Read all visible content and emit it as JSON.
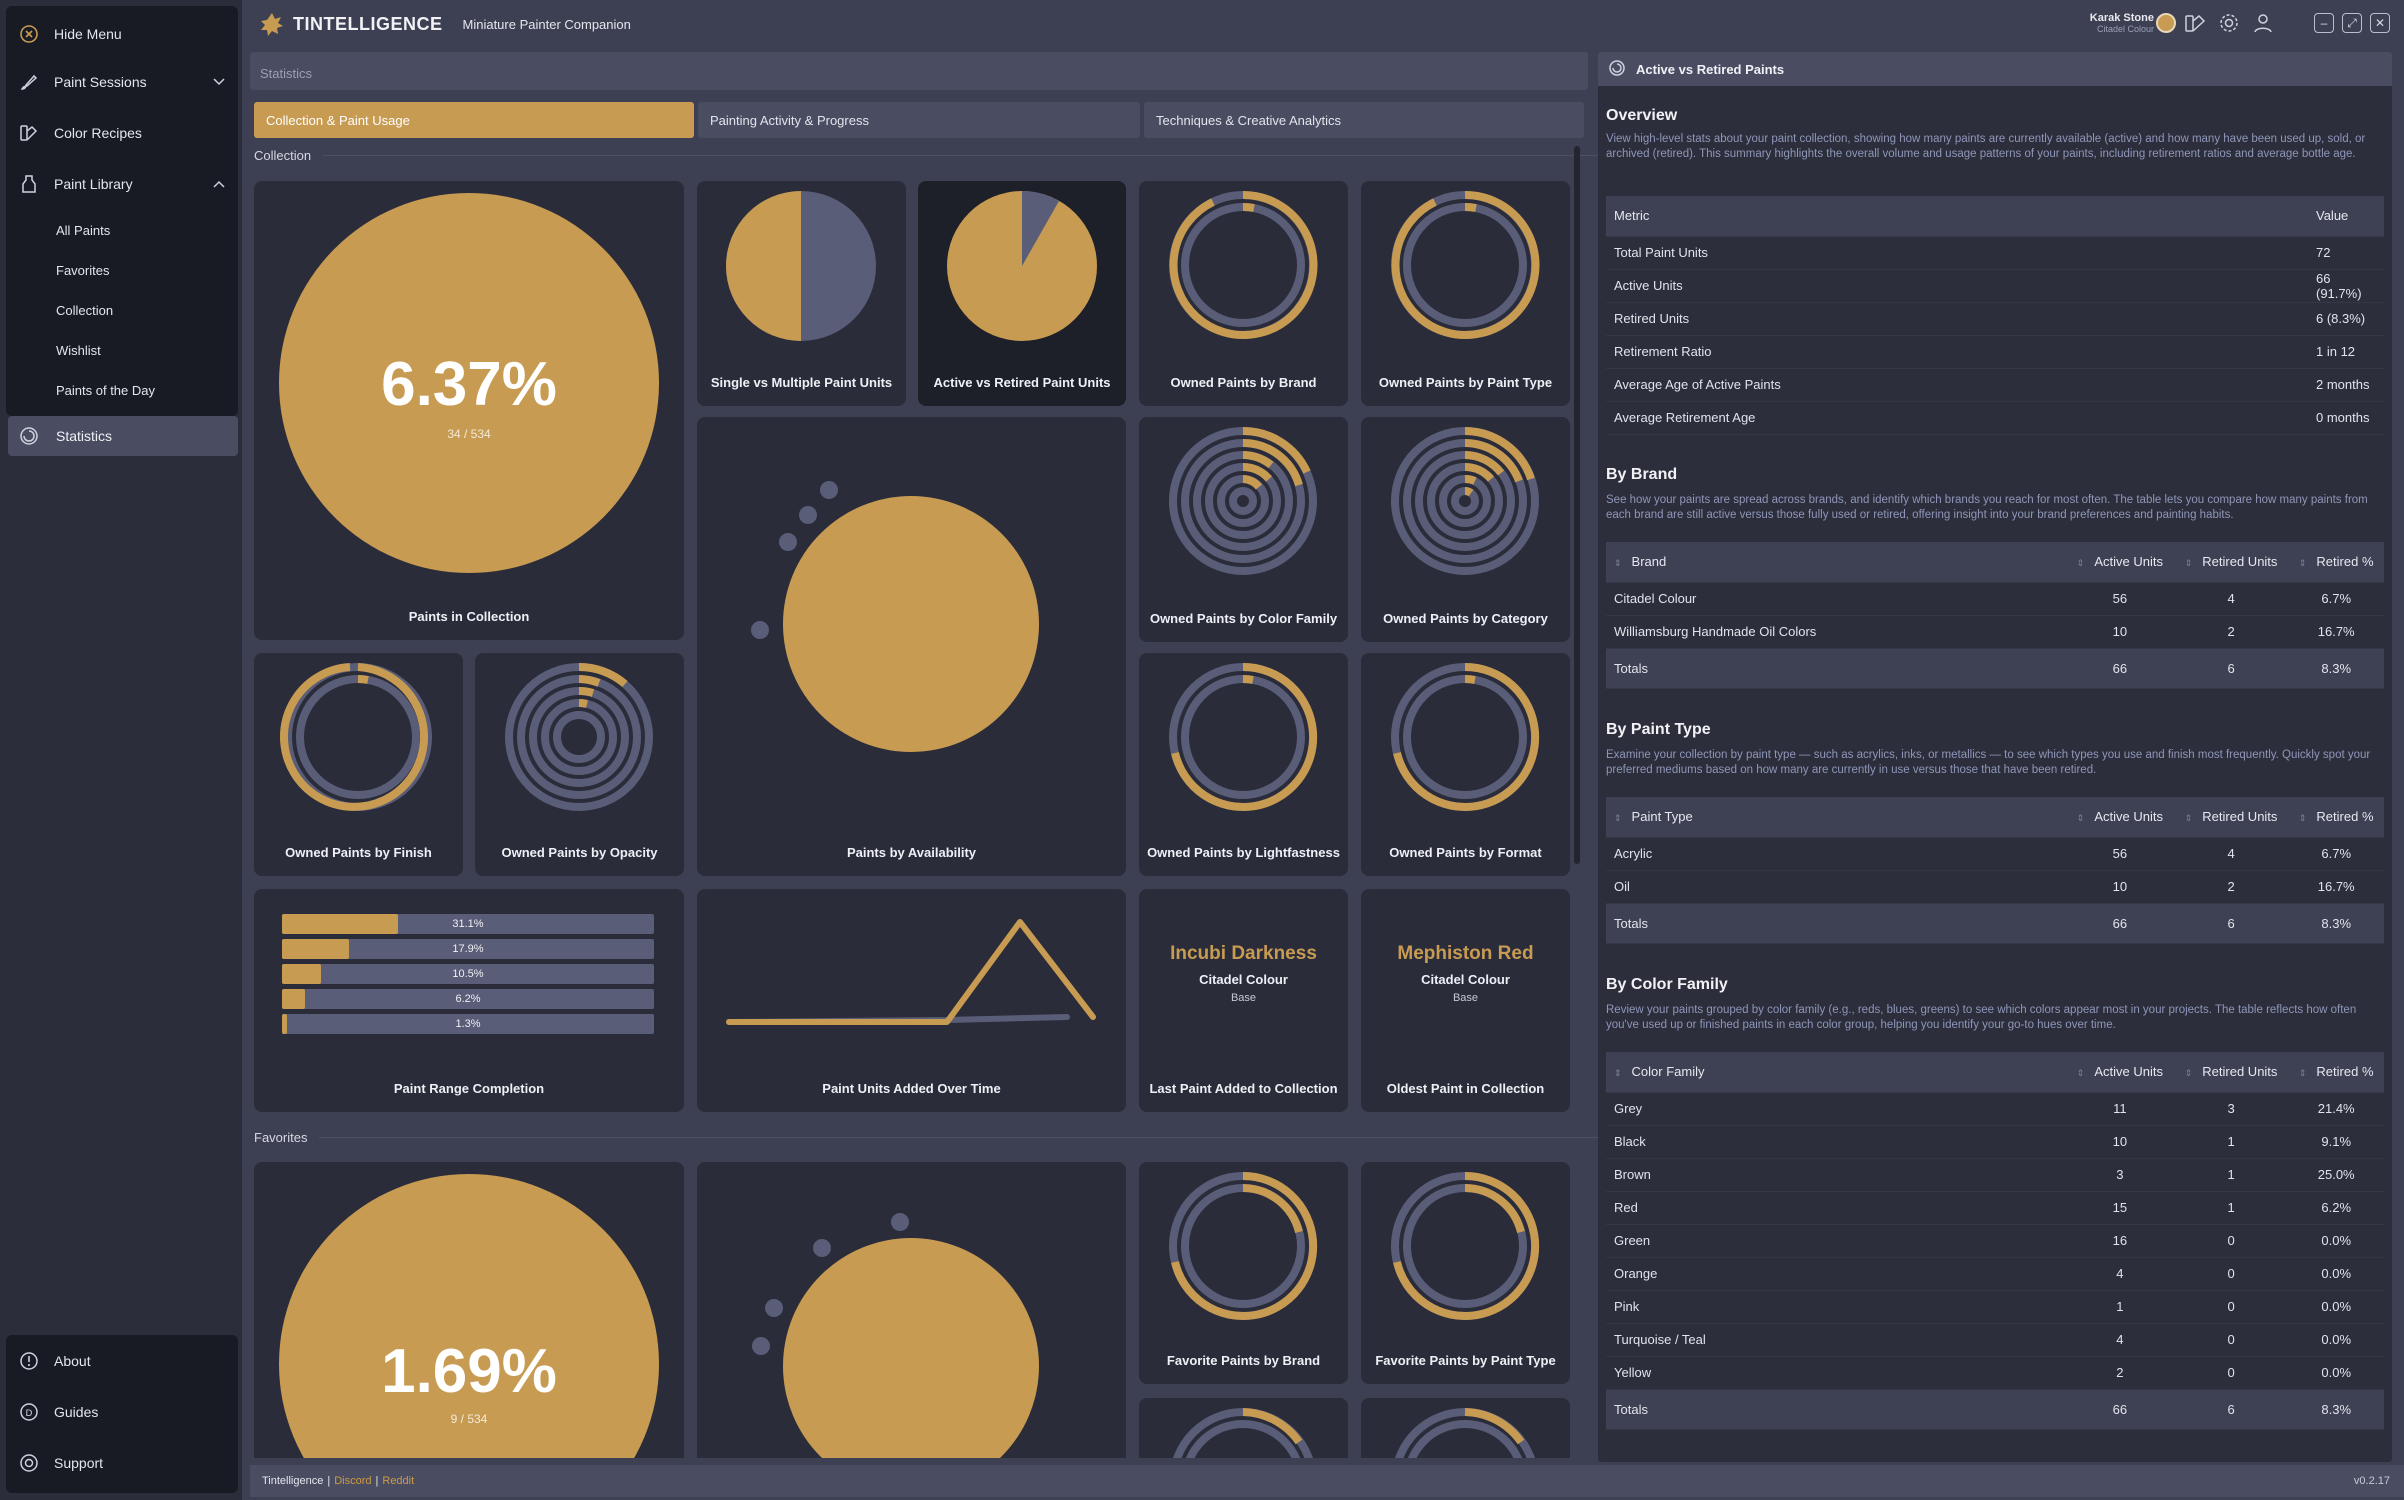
{
  "colors": {
    "accent": "#c89b52",
    "ring": "#5a5d77",
    "card": "#2a2c3a",
    "bg": "#3d4053"
  },
  "sidebar": {
    "hide_menu": "Hide Menu",
    "paint_sessions": "Paint Sessions",
    "color_recipes": "Color Recipes",
    "paint_library": "Paint Library",
    "sub": [
      "All Paints",
      "Favorites",
      "Collection",
      "Wishlist",
      "Paints of the Day"
    ],
    "statistics": "Statistics",
    "about": "About",
    "guides": "Guides",
    "support": "Support"
  },
  "topbar": {
    "brand": "TINTELLIGENCE",
    "subtitle": "Miniature Painter Companion",
    "user_name": "Karak Stone",
    "user_brand": "Citadel Colour"
  },
  "page": {
    "header": "Statistics"
  },
  "tabs": [
    "Collection & Paint Usage",
    "Painting Activity & Progress",
    "Techniques & Creative Analytics"
  ],
  "sections": {
    "collection": "Collection",
    "favorites": "Favorites"
  },
  "cards": {
    "collection_pct": "6.37%",
    "collection_frac": "34 / 534",
    "collection_share": 0.0637,
    "collection_title": "Paints in Collection",
    "single_multi": "Single vs Multiple Paint Units",
    "single_multi_share": 0.5,
    "active_retired": "Active vs Retired Paint Units",
    "active_retired_share": 0.917,
    "by_brand": "Owned Paints by Brand",
    "by_type": "Owned Paints by Paint Type",
    "by_color_family": "Owned Paints by Color Family",
    "by_category": "Owned Paints by Category",
    "availability": "Paints by Availability",
    "by_finish": "Owned Paints by Finish",
    "by_opacity": "Owned Paints by Opacity",
    "by_lightfastness": "Owned Paints by Lightfastness",
    "by_format": "Owned Paints by Format",
    "range_completion": "Paint Range Completion",
    "range_bars": [
      {
        "label": "31.1%",
        "value": 31.1
      },
      {
        "label": "17.9%",
        "value": 17.9
      },
      {
        "label": "10.5%",
        "value": 10.5
      },
      {
        "label": "6.2%",
        "value": 6.2
      },
      {
        "label": "1.3%",
        "value": 1.3
      }
    ],
    "units_added": "Paint Units Added Over Time",
    "last_paint_name": "Incubi Darkness",
    "last_paint_brand": "Citadel Colour",
    "last_paint_type": "Base",
    "last_paint_title": "Last Paint Added to Collection",
    "oldest_paint_name": "Mephiston Red",
    "oldest_paint_brand": "Citadel Colour",
    "oldest_paint_type": "Base",
    "oldest_paint_title": "Oldest Paint in Collection",
    "fav_pct": "1.69%",
    "fav_frac": "9 / 534",
    "fav_brand": "Favorite Paints by Brand",
    "fav_type": "Favorite Paints by Paint Type"
  },
  "panel": {
    "title": "Active vs Retired Paints",
    "overview_h": "Overview",
    "overview_d": "View high-level stats about your paint collection, showing how many paints are currently available (active) and how many have been used up, sold, or archived (retired). This summary highlights the overall volume and usage patterns of your paints, including retirement ratios and average bottle age.",
    "overview_cols": [
      "Metric",
      "Value"
    ],
    "overview_rows": [
      [
        "Total Paint Units",
        "72"
      ],
      [
        "Active Units",
        "66 (91.7%)"
      ],
      [
        "Retired Units",
        "6 (8.3%)"
      ],
      [
        "Retirement Ratio",
        "1 in 12"
      ],
      [
        "Average Age of Active Paints",
        "2 months"
      ],
      [
        "Average Retirement Age",
        "0 months"
      ]
    ],
    "brand_h": "By Brand",
    "brand_d": "See how your paints are spread across brands, and identify which brands you reach for most often. The table lets you compare how many paints from each brand are still active versus those fully used or retired, offering insight into your brand preferences and painting habits.",
    "brand_cols": [
      "Brand",
      "Active Units",
      "Retired Units",
      "Retired %"
    ],
    "brand_rows": [
      [
        "Citadel Colour",
        "56",
        "4",
        "6.7%"
      ],
      [
        "Williamsburg Handmade Oil Colors",
        "10",
        "2",
        "16.7%"
      ]
    ],
    "brand_tot": [
      "Totals",
      "66",
      "6",
      "8.3%"
    ],
    "type_h": "By Paint Type",
    "type_d": "Examine your collection by paint type — such as acrylics, inks, or metallics — to see which types you use and finish most frequently. Quickly spot your preferred mediums based on how many are currently in use versus those that have been retired.",
    "type_cols": [
      "Paint Type",
      "Active Units",
      "Retired Units",
      "Retired %"
    ],
    "type_rows": [
      [
        "Acrylic",
        "56",
        "4",
        "6.7%"
      ],
      [
        "Oil",
        "10",
        "2",
        "16.7%"
      ]
    ],
    "type_tot": [
      "Totals",
      "66",
      "6",
      "8.3%"
    ],
    "family_h": "By Color Family",
    "family_d": "Review your paints grouped by color family (e.g., reds, blues, greens) to see which colors appear most in your projects. The table reflects how often you've used up or finished paints in each color group, helping you identify your go-to hues over time.",
    "family_cols": [
      "Color Family",
      "Active Units",
      "Retired Units",
      "Retired %"
    ],
    "family_rows": [
      [
        "Grey",
        "11",
        "3",
        "21.4%"
      ],
      [
        "Black",
        "10",
        "1",
        "9.1%"
      ],
      [
        "Brown",
        "3",
        "1",
        "25.0%"
      ],
      [
        "Red",
        "15",
        "1",
        "6.2%"
      ],
      [
        "Green",
        "16",
        "0",
        "0.0%"
      ],
      [
        "Orange",
        "4",
        "0",
        "0.0%"
      ],
      [
        "Pink",
        "1",
        "0",
        "0.0%"
      ],
      [
        "Turquoise / Teal",
        "4",
        "0",
        "0.0%"
      ],
      [
        "Yellow",
        "2",
        "0",
        "0.0%"
      ]
    ],
    "family_tot": [
      "Totals",
      "66",
      "6",
      "8.3%"
    ]
  },
  "footer": {
    "app": "Tintelligence",
    "sep": "|",
    "discord": "Discord",
    "reddit": "Reddit",
    "version": "v0.2.17"
  }
}
